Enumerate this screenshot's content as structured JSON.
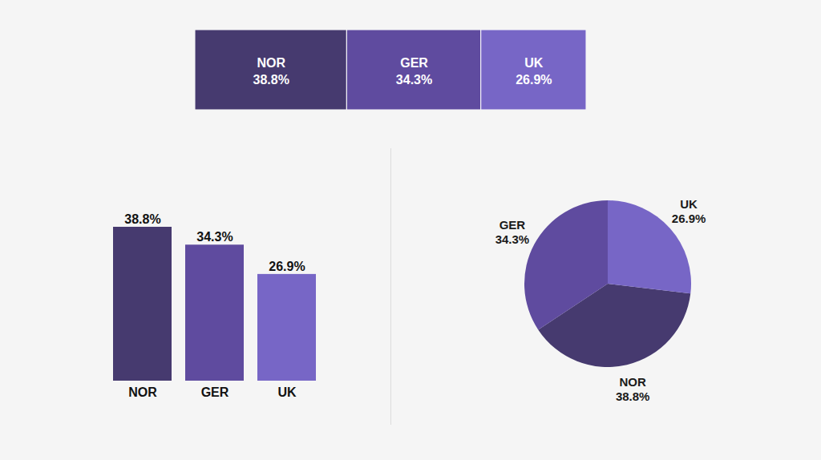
{
  "chart_data": [
    {
      "type": "bar",
      "orientation": "horizontal",
      "stacked": true,
      "categories": [
        "NOR",
        "GER",
        "UK"
      ],
      "values": [
        38.8,
        34.3,
        26.9
      ],
      "value_labels": [
        "38.8%",
        "34.3%",
        "26.9%"
      ],
      "colors": [
        "#463a6f",
        "#5f4b9f",
        "#7766c6"
      ],
      "xlim": [
        0,
        100
      ],
      "data_labels": true,
      "tick_labels": false
    },
    {
      "type": "bar",
      "categories": [
        "NOR",
        "GER",
        "UK"
      ],
      "values": [
        38.8,
        34.3,
        26.9
      ],
      "value_labels": [
        "38.8%",
        "34.3%",
        "26.9%"
      ],
      "colors": [
        "#463a6f",
        "#5f4b9f",
        "#7766c6"
      ],
      "ylim": [
        0,
        38.8
      ],
      "data_labels": true,
      "tick_labels": "x"
    },
    {
      "type": "pie",
      "categories": [
        "NOR",
        "GER",
        "UK"
      ],
      "values": [
        38.8,
        34.3,
        26.9
      ],
      "value_labels": [
        "38.8%",
        "34.3%",
        "26.9%"
      ],
      "colors": [
        "#463a6f",
        "#5f4b9f",
        "#7766c6"
      ],
      "data_labels": true
    }
  ]
}
